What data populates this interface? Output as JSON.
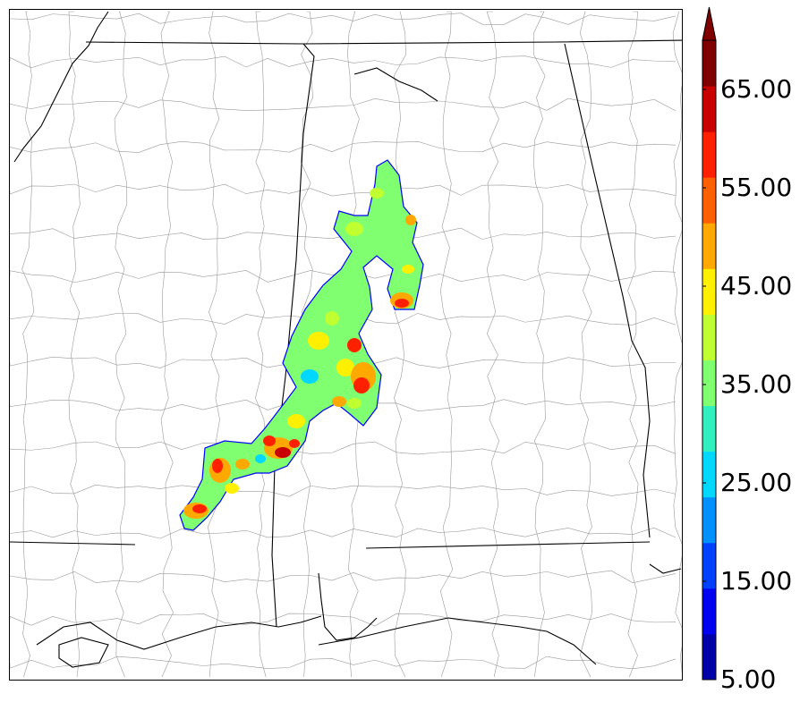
{
  "colorbar": {
    "labels": [
      "65.00",
      "55.00",
      "45.00",
      "35.00",
      "25.00",
      "15.00",
      "5.00"
    ],
    "bands": [
      "#0000a8",
      "#0000f0",
      "#0040ff",
      "#0090ff",
      "#00d8ff",
      "#30f0c0",
      "#80ff70",
      "#c0ff30",
      "#fff000",
      "#ffa800",
      "#ff6000",
      "#ff2000",
      "#c80000",
      "#800000"
    ],
    "extend_color": "#800000",
    "min": 5,
    "max": 70,
    "extend": "max"
  },
  "map": {
    "boundary_color": "#000000",
    "county_color": "#9a9a9a",
    "field_colors": {
      "cyan": "#00d8ff",
      "light": "#80ff70",
      "yellowgreen": "#c0ff30",
      "yellow": "#fff000",
      "orange": "#ffa800",
      "red": "#ff2000",
      "dark": "#c80000"
    }
  }
}
